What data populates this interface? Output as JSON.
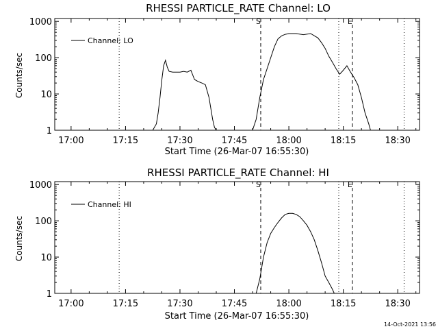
{
  "footer": {
    "timestamp": "14-Oct-2021 13:56"
  },
  "chart_data": [
    {
      "type": "line",
      "title": "RHESSI PARTICLE_RATE Channel: LO",
      "ylabel": "Counts/sec",
      "xlabel": "Start Time (26-Mar-07 16:55:30)",
      "y_scale": "log",
      "xlim": [
        "16:55:30",
        "18:36:00"
      ],
      "ylim": [
        1,
        1200
      ],
      "x_ticks": [
        "17:00",
        "17:15",
        "17:30",
        "17:45",
        "18:00",
        "18:15",
        "18:30"
      ],
      "y_ticks": [
        "1",
        "10",
        "100",
        "1000"
      ],
      "legend": {
        "position": "top-left",
        "entries": [
          "Channel: LO"
        ]
      },
      "annotations": [
        {
          "label": "S",
          "time": "17:52:15",
          "style": "dashed"
        },
        {
          "label": "E",
          "time": "18:17:30",
          "style": "dashed"
        }
      ],
      "night_markers": [
        "17:13:15",
        "18:13:45",
        "18:31:45"
      ],
      "series": [
        {
          "name": "Channel: LO",
          "x": [
            "17:22:30",
            "17:23:30",
            "17:24:00",
            "17:24:30",
            "17:25:00",
            "17:25:30",
            "17:26:00",
            "17:26:30",
            "17:27:00",
            "17:28:00",
            "17:29:00",
            "17:30:00",
            "17:31:00",
            "17:32:00",
            "17:33:00",
            "17:34:00",
            "17:35:00",
            "17:36:00",
            "17:37:00",
            "17:38:00",
            "17:39:00",
            "17:39:30",
            "17:40:00",
            "17:50:00",
            "17:51:00",
            "17:52:00",
            "17:53:00",
            "17:54:00",
            "17:55:00",
            "17:56:00",
            "17:57:00",
            "17:58:00",
            "17:59:00",
            "18:00:00",
            "18:02:00",
            "18:04:00",
            "18:06:00",
            "18:08:00",
            "18:09:00",
            "18:10:00",
            "18:11:00",
            "18:12:00",
            "18:13:00",
            "18:14:00",
            "18:15:00",
            "18:16:00",
            "18:17:00",
            "18:18:00",
            "18:19:00",
            "18:20:00",
            "18:21:00",
            "18:22:00",
            "18:22:30"
          ],
          "y": [
            1,
            1.5,
            3,
            8,
            25,
            60,
            85,
            55,
            42,
            40,
            40,
            40,
            42,
            40,
            45,
            25,
            22,
            20,
            18,
            8,
            2,
            1.2,
            1,
            1,
            2,
            8,
            25,
            50,
            100,
            200,
            330,
            400,
            440,
            460,
            460,
            430,
            460,
            350,
            260,
            180,
            110,
            75,
            50,
            35,
            45,
            60,
            40,
            28,
            18,
            8,
            3,
            1.5,
            1
          ]
        }
      ]
    },
    {
      "type": "line",
      "title": "RHESSI PARTICLE_RATE Channel: HI",
      "ylabel": "Counts/sec",
      "xlabel": "Start Time (26-Mar-07 16:55:30)",
      "y_scale": "log",
      "xlim": [
        "16:55:30",
        "18:36:00"
      ],
      "ylim": [
        1,
        1200
      ],
      "x_ticks": [
        "17:00",
        "17:15",
        "17:30",
        "17:45",
        "18:00",
        "18:15",
        "18:30"
      ],
      "y_ticks": [
        "1",
        "10",
        "100",
        "1000"
      ],
      "legend": {
        "position": "top-left",
        "entries": [
          "Channel: HI"
        ]
      },
      "annotations": [
        {
          "label": "S",
          "time": "17:52:15",
          "style": "dashed"
        },
        {
          "label": "E",
          "time": "18:17:30",
          "style": "dashed"
        }
      ],
      "night_markers": [
        "17:13:15",
        "18:13:45",
        "18:31:45"
      ],
      "series": [
        {
          "name": "Channel: HI",
          "x": [
            "17:51:00",
            "17:52:00",
            "17:53:00",
            "17:54:00",
            "17:55:00",
            "17:56:00",
            "17:57:00",
            "17:58:00",
            "17:59:00",
            "18:00:00",
            "18:01:00",
            "18:02:00",
            "18:03:00",
            "18:04:00",
            "18:05:00",
            "18:06:00",
            "18:07:00",
            "18:08:00",
            "18:09:00",
            "18:10:00",
            "18:11:00",
            "18:12:00",
            "18:12:30"
          ],
          "y": [
            1,
            2.5,
            10,
            25,
            45,
            65,
            90,
            120,
            150,
            160,
            160,
            150,
            130,
            100,
            75,
            50,
            30,
            15,
            7,
            3,
            2,
            1.3,
            1
          ]
        }
      ]
    }
  ]
}
